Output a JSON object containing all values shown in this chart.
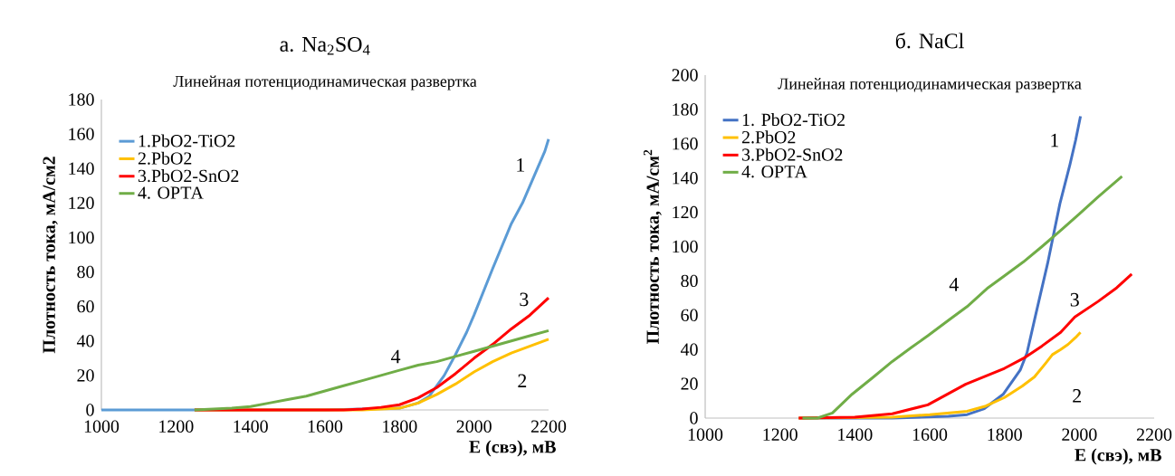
{
  "chart_data": [
    {
      "type": "line",
      "title": "а. Na$_{2}$SO$_{4}$",
      "subtitle": "Линейная потенциодинамическая развертка",
      "xlabel": "E (свэ), мВ",
      "ylabel": "Плотность тока, мА/см2",
      "xlim": [
        1000,
        2200
      ],
      "ylim": [
        0,
        180
      ],
      "xticks": [
        1000,
        1200,
        1400,
        1600,
        1800,
        2000,
        2200
      ],
      "yticks": [
        0,
        20,
        40,
        60,
        80,
        100,
        120,
        140,
        160,
        180
      ],
      "legend": "top left",
      "grid": false,
      "marker": "none",
      "series": [
        {
          "name": "1.PbO2-TiO2",
          "color": "#5b9bd5",
          "x": [
            1000,
            1200,
            1400,
            1600,
            1800,
            1850,
            1880,
            1920,
            1950,
            1980,
            2000,
            2050,
            2100,
            2130,
            2170,
            2190,
            2200
          ],
          "values": [
            0,
            0,
            0,
            0,
            1,
            4,
            8,
            20,
            32,
            45,
            55,
            82,
            108,
            120,
            140,
            150,
            157
          ]
        },
        {
          "name": "2.PbO2",
          "color": "#ffc000",
          "x": [
            1250,
            1700,
            1800,
            1850,
            1900,
            1950,
            2000,
            2050,
            2100,
            2150,
            2200
          ],
          "values": [
            0,
            0,
            1,
            4,
            9,
            15,
            22,
            28,
            33,
            37,
            41
          ]
        },
        {
          "name": "3.PbO2-SnO2",
          "color": "#ff0000",
          "x": [
            1250,
            1650,
            1700,
            1750,
            1800,
            1850,
            1900,
            1950,
            2000,
            2050,
            2100,
            2150,
            2200
          ],
          "values": [
            0,
            0,
            0.5,
            1.5,
            3,
            7,
            13,
            21,
            30,
            38,
            47,
            55,
            65
          ]
        },
        {
          "name": "4. ОРТА",
          "color": "#70ad47",
          "x": [
            1250,
            1300,
            1350,
            1400,
            1450,
            1500,
            1550,
            1600,
            1650,
            1700,
            1750,
            1800,
            1850,
            1900,
            1950,
            2000,
            2050,
            2100,
            2150,
            2200
          ],
          "values": [
            0,
            0.5,
            1,
            2,
            4,
            6,
            8,
            11,
            14,
            17,
            20,
            23,
            26,
            28,
            31,
            34,
            37,
            40,
            43,
            46
          ]
        }
      ],
      "annotations": [
        "1",
        "2",
        "3",
        "4"
      ]
    },
    {
      "type": "line",
      "title": "б. NaCl",
      "subtitle": "Линейная потенциодинамическая развертка",
      "xlabel": "E (свэ), мВ",
      "ylabel": "Плотность тока, мА/см$^{2}$",
      "xlim": [
        1000,
        2200
      ],
      "ylim": [
        0,
        200
      ],
      "xticks": [
        1000,
        1200,
        1400,
        1600,
        1800,
        2000,
        2200
      ],
      "yticks": [
        0,
        20,
        40,
        60,
        80,
        100,
        120,
        140,
        160,
        180,
        200
      ],
      "legend": "top left",
      "grid": false,
      "marker": "none",
      "series": [
        {
          "name": "1. PbO2-TiO2",
          "color": "#4472c4",
          "x": [
            1250,
            1500,
            1650,
            1700,
            1746,
            1797,
            1842,
            1860,
            1882,
            1915,
            1948,
            1975,
            1990,
            2003
          ],
          "values": [
            0,
            0,
            1,
            2,
            5.5,
            14,
            28,
            38,
            59,
            90,
            125,
            148,
            162,
            176
          ]
        },
        {
          "name": "2.PbO2",
          "color": "#ffc000",
          "x": [
            1250,
            1500,
            1600,
            1700,
            1750,
            1800,
            1847,
            1880,
            1910,
            1928,
            1950,
            1970,
            1990,
            2003
          ],
          "values": [
            0,
            0.5,
            2,
            4,
            7,
            12,
            18.6,
            24,
            32,
            37,
            40,
            43,
            47,
            50
          ]
        },
        {
          "name": "3.PbO2-SnO2",
          "color": "#ff0000",
          "x": [
            1250,
            1400,
            1500,
            1595,
            1696,
            1800,
            1852,
            1900,
            1950,
            1988,
            2050,
            2100,
            2140
          ],
          "values": [
            0,
            0.5,
            2.5,
            7.7,
            19.7,
            29,
            35,
            42,
            50,
            59,
            68,
            76,
            84
          ]
        },
        {
          "name": "4. ОРТА",
          "color": "#70ad47",
          "x": [
            1260,
            1300,
            1340,
            1393,
            1450,
            1500,
            1550,
            1595,
            1650,
            1700,
            1756,
            1800,
            1850,
            1900,
            1948,
            2000,
            2050,
            2114
          ],
          "values": [
            0,
            0,
            3,
            14,
            24,
            33,
            41,
            48,
            57,
            65,
            76,
            83,
            91,
            100,
            109,
            119,
            129,
            141
          ]
        }
      ],
      "annotations": [
        "1",
        "2",
        "3",
        "4"
      ]
    }
  ]
}
